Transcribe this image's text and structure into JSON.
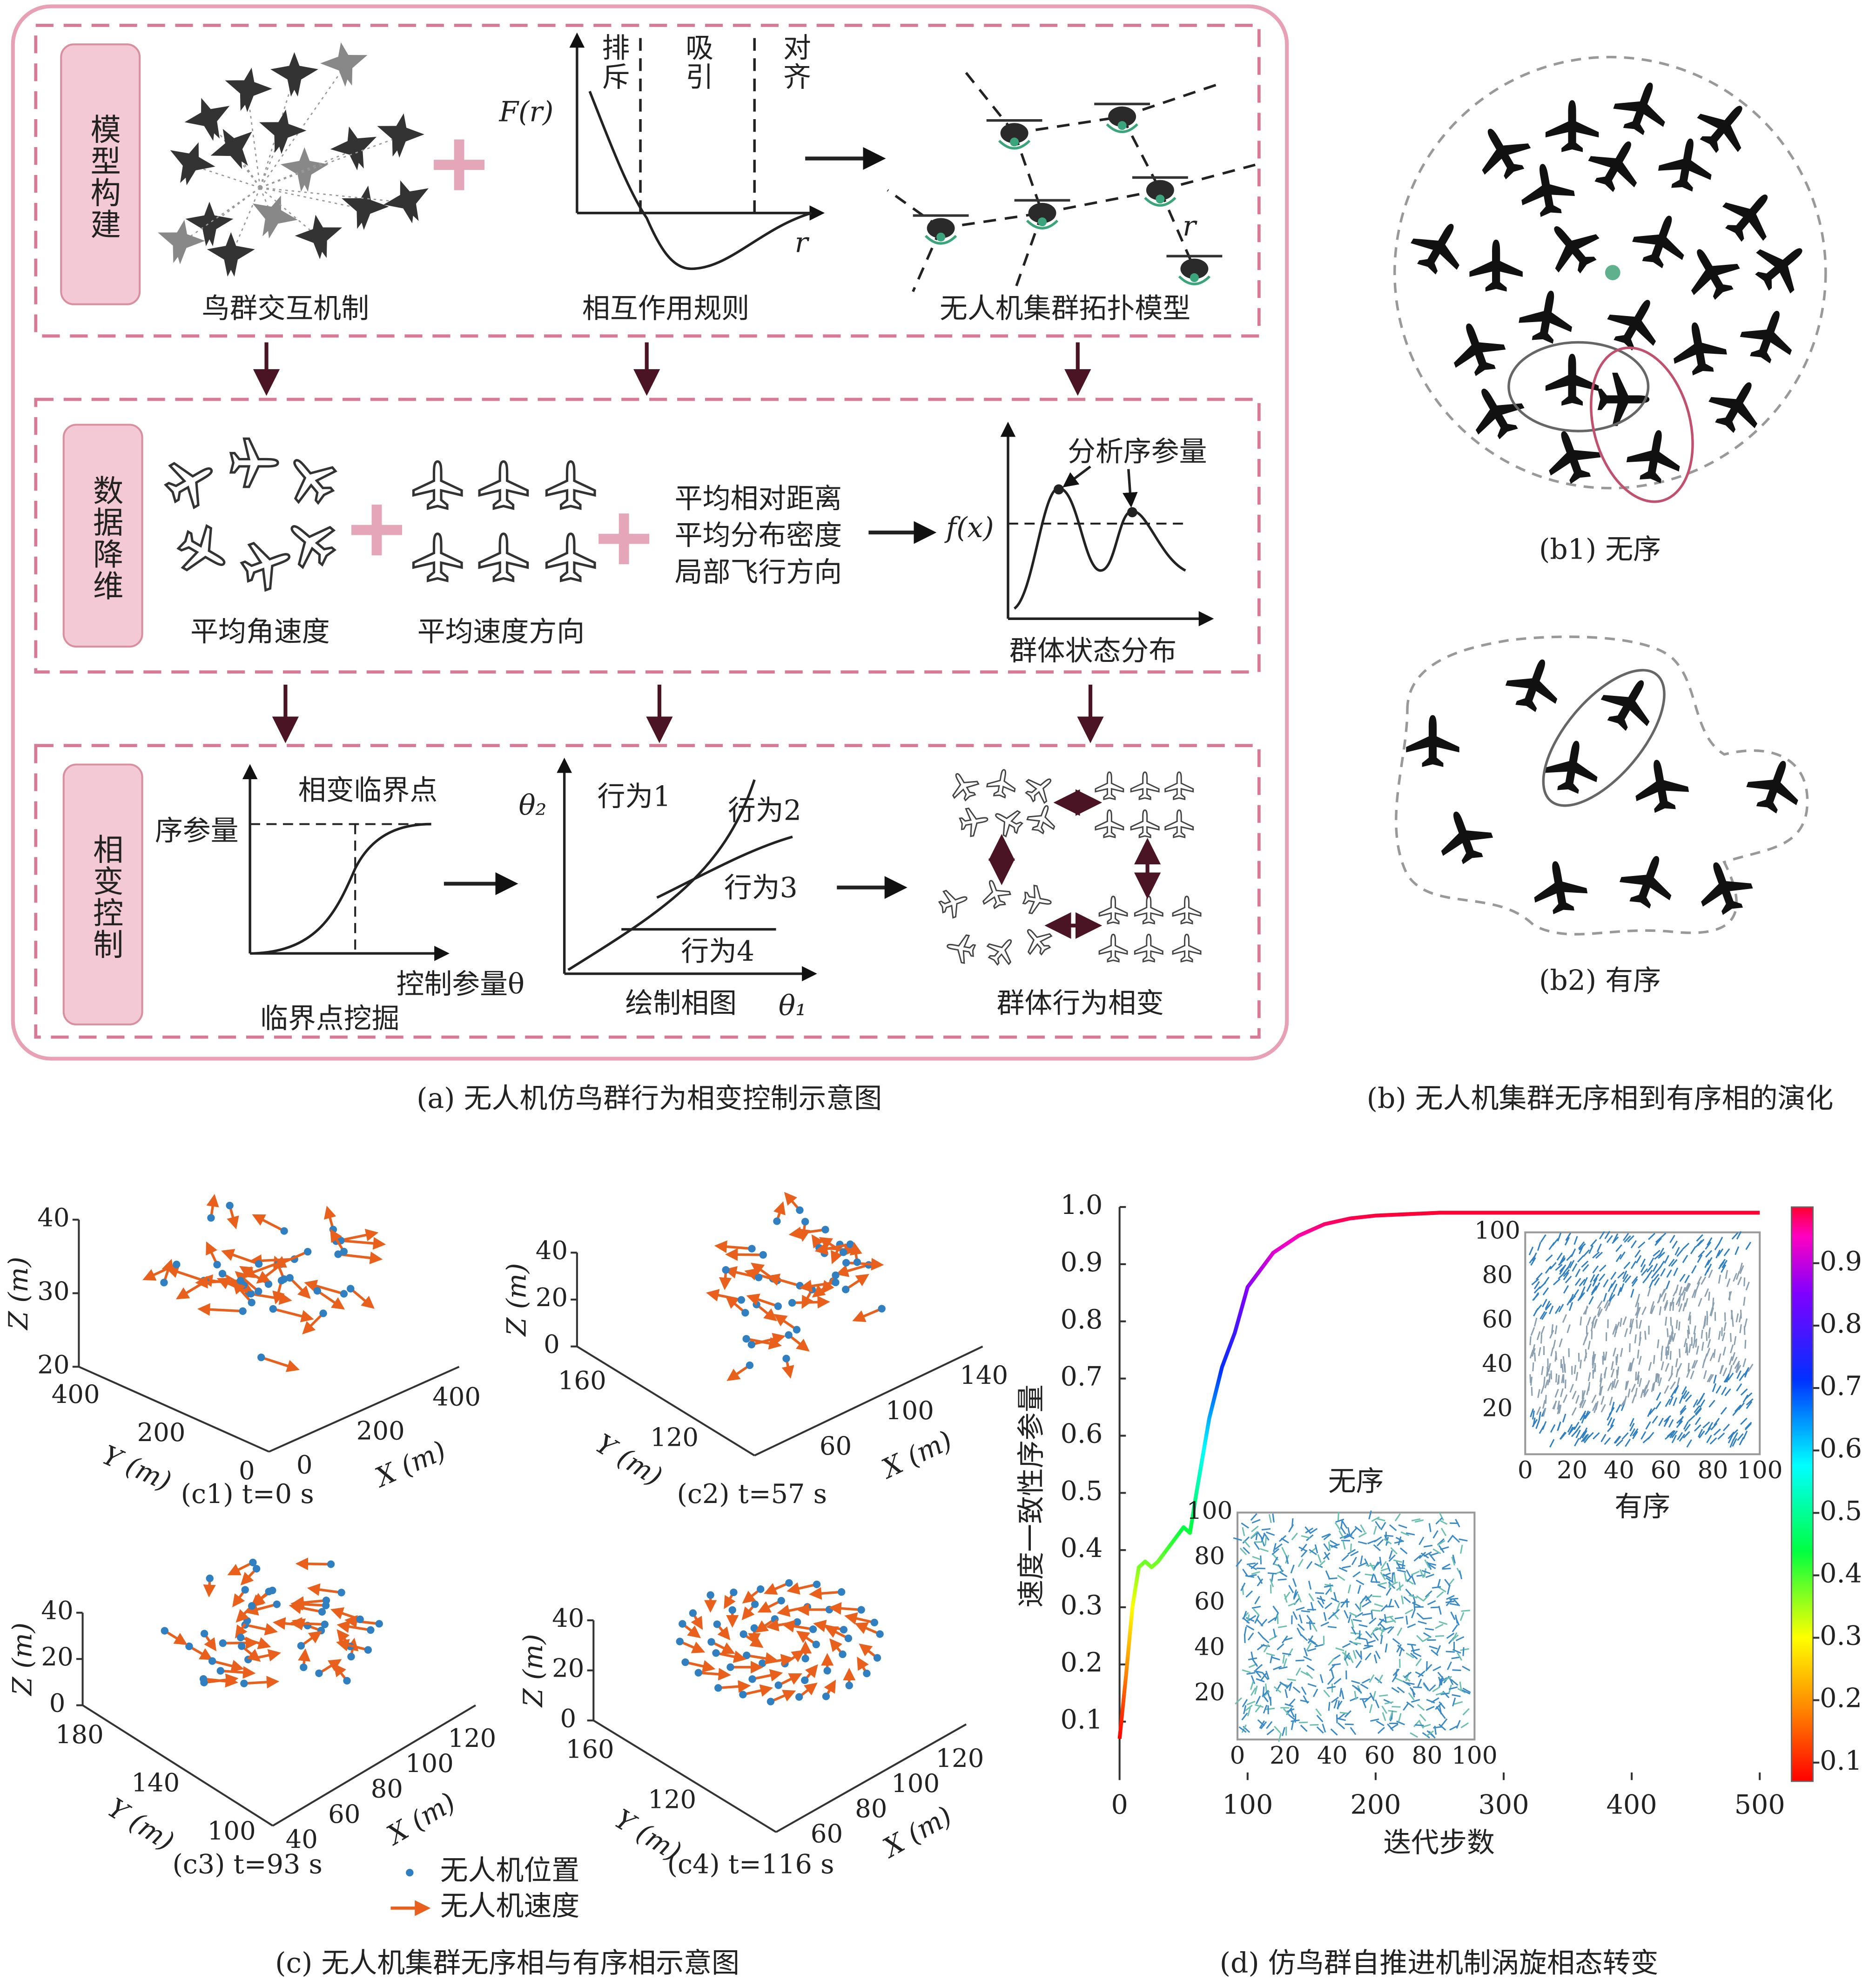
{
  "panel_a": {
    "caption": "(a) 无人机仿鸟群行为相变控制示意图",
    "model": {
      "label": "模型构建",
      "repulsion": "排斥",
      "attraction": "吸引",
      "alignment": "对齐",
      "force_axis": "F(r)",
      "distance_axis": "r",
      "drone_distance": "r",
      "captions": [
        "鸟群交互机制",
        "相互作用规则",
        "无人机集群拓扑模型"
      ]
    },
    "reduction": {
      "label": "数据降维",
      "captions": [
        "平均角速度",
        "平均速度方向"
      ],
      "metrics": [
        "平均相对距离",
        "平均分布密度",
        "局部飞行方向"
      ],
      "analysis": "分析序参量",
      "function_axis": "f(x)",
      "state_caption": "群体状态分布"
    },
    "control": {
      "label": "相变控制",
      "critical_point": "相变临界点",
      "order_parameter": "序参量",
      "control_parameter": "控制参量θ",
      "critical_caption": "临界点挖掘",
      "theta2": "θ₂",
      "theta1": "θ₁",
      "behaviors": [
        "行为1",
        "行为2",
        "行为3",
        "行为4"
      ],
      "phase_caption": "绘制相图",
      "transition_caption": "群体行为相变"
    }
  },
  "panel_b": {
    "b1": "(b1) 无序",
    "b2": "(b2) 有序",
    "caption": "(b) 无人机集群无序相到有序相的演化"
  },
  "panel_c": {
    "plots": [
      {
        "title": "(c1) t=0 s",
        "zticks": [
          20,
          30,
          40
        ],
        "yticks": [
          400,
          200,
          0
        ],
        "xticks": [
          0,
          200,
          400
        ]
      },
      {
        "title": "(c2) t=57 s",
        "zticks": [
          0,
          20,
          40
        ],
        "yticks": [
          160,
          120
        ],
        "xticks": [
          60,
          100,
          140
        ]
      },
      {
        "title": "(c3) t=93 s",
        "zticks": [
          0,
          20,
          40
        ],
        "yticks": [
          180,
          140,
          100
        ],
        "xticks": [
          40,
          60,
          80,
          100,
          120
        ]
      },
      {
        "title": "(c4) t=116 s",
        "zticks": [
          0,
          20,
          40
        ],
        "yticks": [
          160,
          120
        ],
        "xticks": [
          60,
          80,
          100,
          120
        ]
      }
    ],
    "z_label": "Z (m)",
    "y_label": "Y (m)",
    "x_label": "X (m)",
    "legend": [
      "无人机位置",
      "无人机速度"
    ],
    "caption": "(c) 无人机集群无序相与有序相示意图"
  },
  "chart_data": {
    "type": "line",
    "caption": "(d) 仿鸟群自推进机制涡旋相态转变",
    "x_label": "迭代步数",
    "y_label": "速度一致性序参量",
    "x": [
      0,
      5,
      10,
      15,
      20,
      25,
      30,
      40,
      50,
      55,
      60,
      70,
      80,
      90,
      100,
      120,
      140,
      160,
      180,
      200,
      250,
      300,
      400,
      500
    ],
    "values": [
      0.07,
      0.18,
      0.3,
      0.37,
      0.38,
      0.37,
      0.38,
      0.41,
      0.44,
      0.43,
      0.5,
      0.63,
      0.72,
      0.78,
      0.86,
      0.92,
      0.95,
      0.97,
      0.98,
      0.985,
      0.99,
      0.99,
      0.99,
      0.99
    ],
    "xlim": [
      0,
      500
    ],
    "ylim": [
      0,
      1.0
    ],
    "xticks": [
      0,
      100,
      200,
      300,
      400,
      500
    ],
    "yticks": [
      0.1,
      0.2,
      0.3,
      0.4,
      0.5,
      0.6,
      0.7,
      0.8,
      0.9,
      {
        "value": 1.0,
        "label": "1.0"
      }
    ],
    "colorbar": {
      "lim": [
        0.07,
        0.99
      ],
      "ticks": [
        0.1,
        0.2,
        0.3,
        0.4,
        0.5,
        0.6,
        0.7,
        0.8,
        0.9
      ]
    },
    "insets": [
      {
        "title": "有序",
        "xticks": [
          0,
          20,
          40,
          60,
          80,
          100
        ],
        "yticks": [
          20,
          40,
          60,
          80,
          100
        ]
      },
      {
        "title": "无序",
        "xticks": [
          0,
          20,
          40,
          60,
          80,
          100
        ],
        "yticks": [
          20,
          40,
          60,
          80,
          100
        ]
      }
    ]
  }
}
